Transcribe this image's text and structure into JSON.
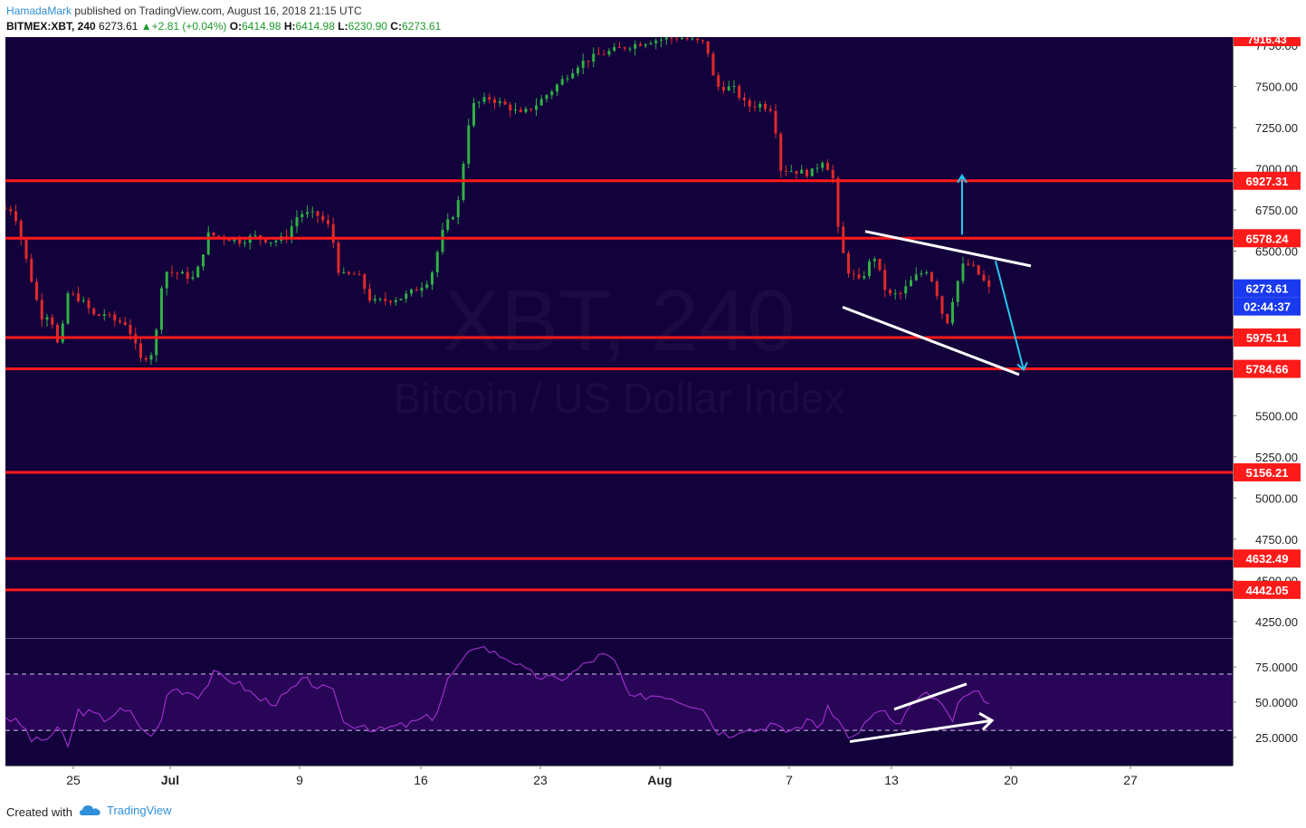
{
  "header": {
    "author": "HamadaMark",
    "published_text": "published on TradingView.com, August 16, 2018 21:15 UTC",
    "symbol": "BITMEX:XBT, 240",
    "last": "6273.61",
    "change": "+2.81 (+0.04%)",
    "open_label": "O:",
    "open": "6414.98",
    "high_label": "H:",
    "high": "6414.98",
    "low_label": "L:",
    "low": "6230.90",
    "close_label": "C:",
    "close": "6273.61"
  },
  "watermark": {
    "line1": "XBT, 240",
    "line2": "Bitcoin / US Dollar Index"
  },
  "footer": {
    "created_with": "Created with",
    "brand": "TradingView"
  },
  "colors": {
    "background": "#12013b",
    "level_line": "#ff1a1a",
    "channel": "#ffffff",
    "projection": "#29c5f0",
    "candle_up": "#31b045",
    "candle_down": "#e02a2a",
    "rsi_line": "#9b2fc9",
    "rsi_band": "#3a0a6e",
    "axis_bg": "#ffffff",
    "price_tag": "#1a3af0"
  },
  "chart_data": [
    {
      "type": "candlestick",
      "symbol": "BITMEX:XBT",
      "timeframe": "240",
      "x_tick_labels": [
        "25",
        "Jul",
        "9",
        "16",
        "23",
        "Aug",
        "7",
        "13",
        "20",
        "27"
      ],
      "y_tick_labels": [
        "7750.00",
        "7500.00",
        "7250.00",
        "7000.00",
        "6750.00",
        "6500.00",
        "5500.00",
        "5250.00",
        "5000.00",
        "4750.00",
        "4500.00",
        "4250.00"
      ],
      "ylim": [
        4150,
        7800
      ],
      "horizontal_levels": [
        "6927.31",
        "6578.24",
        "5975.11",
        "5784.66",
        "5156.21",
        "4632.49",
        "4442.05"
      ],
      "last_price_tag": "6273.61",
      "countdown": "02:44:37",
      "partial_top_tag": "7916.43",
      "path": [
        [
          0,
          6760
        ],
        [
          0.015,
          6750
        ],
        [
          0.03,
          6420
        ],
        [
          0.045,
          6100
        ],
        [
          0.055,
          6120
        ],
        [
          0.065,
          5900
        ],
        [
          0.075,
          6250
        ],
        [
          0.09,
          6200
        ],
        [
          0.105,
          6100
        ],
        [
          0.115,
          6120
        ],
        [
          0.125,
          6080
        ],
        [
          0.14,
          6060
        ],
        [
          0.155,
          5840
        ],
        [
          0.17,
          5890
        ],
        [
          0.18,
          6380
        ],
        [
          0.2,
          6360
        ],
        [
          0.215,
          6330
        ],
        [
          0.23,
          6600
        ],
        [
          0.25,
          6580
        ],
        [
          0.265,
          6560
        ],
        [
          0.28,
          6590
        ],
        [
          0.3,
          6560
        ],
        [
          0.315,
          6580
        ],
        [
          0.33,
          6730
        ],
        [
          0.35,
          6720
        ],
        [
          0.365,
          6640
        ],
        [
          0.375,
          6350
        ],
        [
          0.395,
          6360
        ],
        [
          0.41,
          6190
        ],
        [
          0.425,
          6200
        ],
        [
          0.445,
          6220
        ],
        [
          0.46,
          6270
        ],
        [
          0.475,
          6330
        ],
        [
          0.49,
          6640
        ],
        [
          0.505,
          6760
        ],
        [
          0.52,
          7380
        ],
        [
          0.54,
          7430
        ],
        [
          0.56,
          7380
        ],
        [
          0.575,
          7330
        ],
        [
          0.59,
          7380
        ],
        [
          0.61,
          7480
        ],
        [
          0.625,
          7560
        ],
        [
          0.64,
          7640
        ],
        [
          0.66,
          7690
        ],
        [
          0.69,
          7740
        ],
        [
          0.72,
          7780
        ],
        [
          0.75,
          7800
        ],
        [
          0.78,
          7760
        ],
        [
          0.79,
          7500
        ],
        [
          0.81,
          7490
        ],
        [
          0.825,
          7380
        ],
        [
          0.84,
          7390
        ],
        [
          0.855,
          7360
        ],
        [
          0.86,
          7000
        ],
        [
          0.875,
          6990
        ],
        [
          0.895,
          6970
        ],
        [
          0.91,
          7060
        ],
        [
          0.92,
          6940
        ],
        [
          0.925,
          6650
        ],
        [
          0.935,
          6390
        ],
        [
          0.95,
          6310
        ],
        [
          0.965,
          6480
        ],
        [
          0.98,
          6230
        ],
        [
          0.995,
          6240
        ],
        [
          1.01,
          6340
        ],
        [
          1.025,
          6390
        ],
        [
          1.035,
          6240
        ],
        [
          1.045,
          6040
        ],
        [
          1.055,
          6270
        ],
        [
          1.065,
          6430
        ],
        [
          1.075,
          6400
        ],
        [
          1.085,
          6330
        ],
        [
          1.092,
          6273
        ]
      ]
    },
    {
      "type": "line",
      "name": "RSI",
      "y_tick_labels": [
        "75.0000",
        "50.0000",
        "25.0000"
      ],
      "ylim": [
        5,
        95
      ],
      "bands": [
        30,
        70
      ],
      "path": [
        [
          0,
          40
        ],
        [
          0.02,
          33
        ],
        [
          0.03,
          22
        ],
        [
          0.045,
          24
        ],
        [
          0.06,
          31
        ],
        [
          0.07,
          18
        ],
        [
          0.08,
          44
        ],
        [
          0.095,
          42
        ],
        [
          0.11,
          38
        ],
        [
          0.125,
          44
        ],
        [
          0.14,
          42
        ],
        [
          0.155,
          27
        ],
        [
          0.17,
          30
        ],
        [
          0.18,
          60
        ],
        [
          0.2,
          58
        ],
        [
          0.215,
          55
        ],
        [
          0.23,
          70
        ],
        [
          0.25,
          66
        ],
        [
          0.265,
          60
        ],
        [
          0.28,
          52
        ],
        [
          0.3,
          50
        ],
        [
          0.315,
          58
        ],
        [
          0.33,
          66
        ],
        [
          0.35,
          60
        ],
        [
          0.365,
          56
        ],
        [
          0.375,
          33
        ],
        [
          0.395,
          35
        ],
        [
          0.41,
          29
        ],
        [
          0.425,
          32
        ],
        [
          0.445,
          34
        ],
        [
          0.46,
          38
        ],
        [
          0.475,
          40
        ],
        [
          0.49,
          68
        ],
        [
          0.505,
          78
        ],
        [
          0.52,
          92
        ],
        [
          0.54,
          85
        ],
        [
          0.56,
          80
        ],
        [
          0.575,
          72
        ],
        [
          0.59,
          68
        ],
        [
          0.61,
          66
        ],
        [
          0.625,
          70
        ],
        [
          0.64,
          77
        ],
        [
          0.66,
          84
        ],
        [
          0.675,
          78
        ],
        [
          0.69,
          52
        ],
        [
          0.71,
          55
        ],
        [
          0.73,
          55
        ],
        [
          0.75,
          50
        ],
        [
          0.77,
          47
        ],
        [
          0.785,
          30
        ],
        [
          0.8,
          27
        ],
        [
          0.815,
          32
        ],
        [
          0.83,
          30
        ],
        [
          0.845,
          35
        ],
        [
          0.86,
          29
        ],
        [
          0.875,
          32
        ],
        [
          0.89,
          38
        ],
        [
          0.9,
          32
        ],
        [
          0.91,
          47
        ],
        [
          0.92,
          37
        ],
        [
          0.93,
          27
        ],
        [
          0.94,
          24
        ],
        [
          0.955,
          40
        ],
        [
          0.97,
          45
        ],
        [
          0.98,
          33
        ],
        [
          0.99,
          36
        ],
        [
          1.0,
          47
        ],
        [
          1.015,
          54
        ],
        [
          1.025,
          56
        ],
        [
          1.035,
          46
        ],
        [
          1.045,
          36
        ],
        [
          1.055,
          50
        ],
        [
          1.065,
          58
        ],
        [
          1.075,
          56
        ],
        [
          1.085,
          52
        ],
        [
          1.092,
          48
        ]
      ]
    }
  ]
}
